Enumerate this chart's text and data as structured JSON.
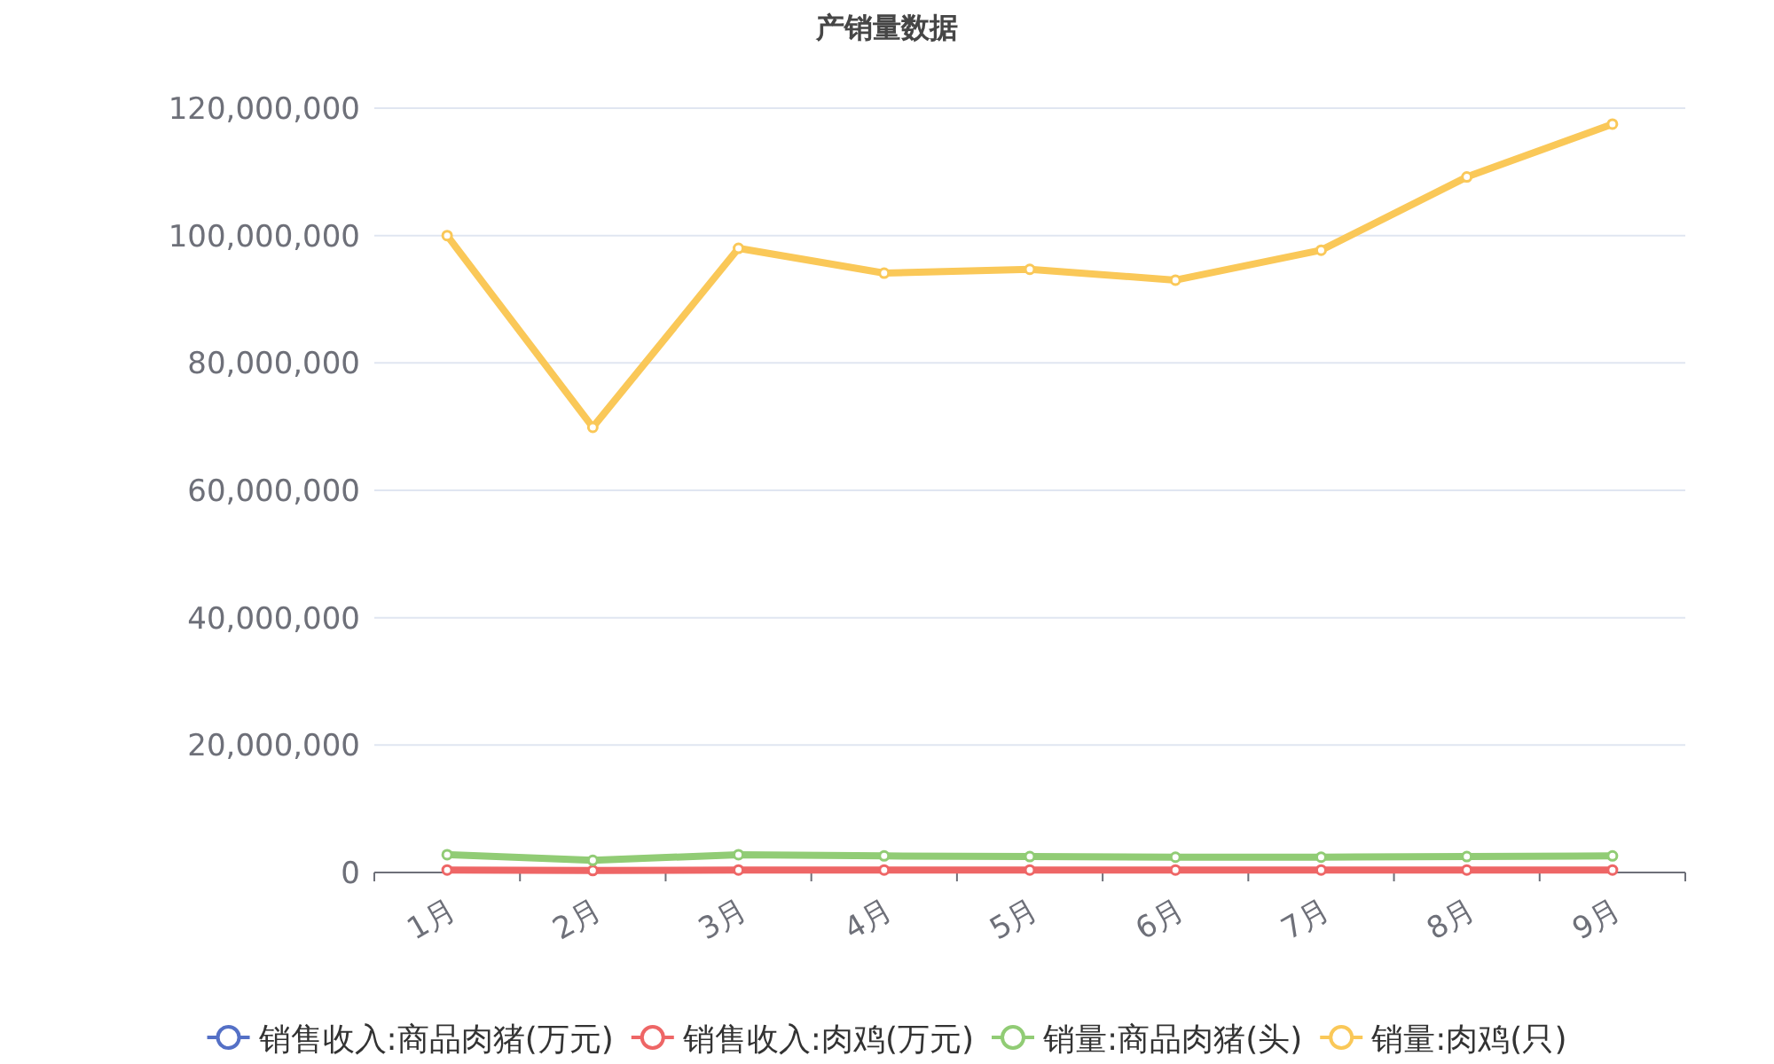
{
  "chart_data": {
    "type": "line",
    "title": "产销量数据",
    "categories": [
      "1月",
      "2月",
      "3月",
      "4月",
      "5月",
      "6月",
      "7月",
      "8月",
      "9月"
    ],
    "ylim": [
      0,
      120000000
    ],
    "yticks": [
      {
        "value": 0,
        "label": "0"
      },
      {
        "value": 20000000,
        "label": "20,000,000"
      },
      {
        "value": 40000000,
        "label": "40,000,000"
      },
      {
        "value": 60000000,
        "label": "60,000,000"
      },
      {
        "value": 80000000,
        "label": "80,000,000"
      },
      {
        "value": 100000000,
        "label": "100,000,000"
      },
      {
        "value": 120000000,
        "label": "120,000,000"
      }
    ],
    "grid": "y",
    "legend": "bottom",
    "marker": "circle",
    "series": [
      {
        "name": "销售收入:商品肉猪(万元)",
        "color": "#5470c6",
        "values": [
          null,
          null,
          null,
          null,
          null,
          null,
          null,
          null,
          null
        ]
      },
      {
        "name": "销售收入:肉鸡(万元)",
        "color": "#ee6666",
        "values": [
          400000,
          300000,
          400000,
          400000,
          400000,
          400000,
          400000,
          400000,
          400000
        ]
      },
      {
        "name": "销量:商品肉猪(头)",
        "color": "#91cc75",
        "values": [
          2800000,
          1900000,
          2800000,
          2600000,
          2500000,
          2400000,
          2400000,
          2500000,
          2600000
        ]
      },
      {
        "name": "销量:肉鸡(只)",
        "color": "#fac858",
        "values": [
          100000000,
          69900000,
          98000000,
          94100000,
          94700000,
          93000000,
          97700000,
          109200000,
          117500000
        ]
      }
    ]
  }
}
